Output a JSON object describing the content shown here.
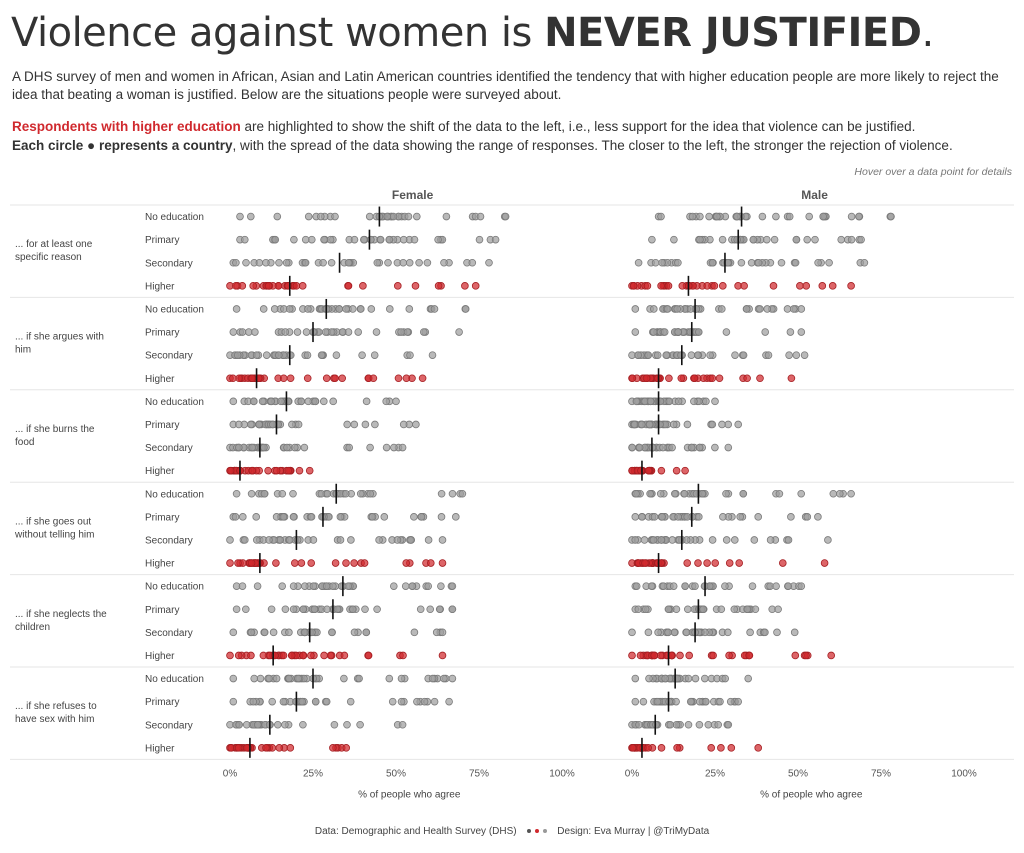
{
  "header": {
    "title_normal": "Violence against women is ",
    "title_bold": "NEVER JUSTIFIED",
    "title_end": ".",
    "intro": "A DHS survey of men and women in African, Asian and Latin American countries identified the tendency that with higher education people are more likely to reject the idea that beating a woman is justified. Below are the situations people were surveyed about.",
    "highlight_label": "Respondents with higher education",
    "highlight_text": " are highlighted to show the shift of the data to the left, i.e., less support for the idea that violence can be justified.",
    "circle_label": "Each circle ● represents a country",
    "circle_text": ", with the spread of the data showing the range of responses. The closer to the left, the stronger the rejection of violence.",
    "hover_note": "Hover over a data point for details"
  },
  "footer": {
    "source": "Data: Demographic and Health Survey (DHS)",
    "design": "Design: Eva Murray | @TriMyData"
  },
  "colors": {
    "grey_dot": "#9e9e9e",
    "grey_dot_stroke": "#7a7a7a",
    "red_dot": "#d0292e",
    "median_line": "#111111",
    "divider": "#e6e6e6"
  },
  "chart_data": {
    "type": "scatter",
    "subtype": "strip-plot",
    "panels": [
      "Female",
      "Male"
    ],
    "xlabel": "% of people who agree",
    "x_ticks": [
      "0%",
      "25%",
      "50%",
      "75%",
      "100%"
    ],
    "xlim": [
      0,
      100
    ],
    "education_levels": [
      "No education",
      "Primary",
      "Secondary",
      "Higher"
    ],
    "highlighted_level": "Higher",
    "groups": [
      {
        "label": "... for at least one specific reason",
        "female": [
          {
            "range": [
              3,
              83
            ],
            "median": 45
          },
          {
            "range": [
              3,
              80
            ],
            "median": 42
          },
          {
            "range": [
              1,
              78
            ],
            "median": 33
          },
          {
            "range": [
              0,
              74
            ],
            "median": 18
          }
        ],
        "male": [
          {
            "range": [
              8,
              78
            ],
            "median": 33
          },
          {
            "range": [
              6,
              69
            ],
            "median": 32
          },
          {
            "range": [
              2,
              70
            ],
            "median": 28
          },
          {
            "range": [
              0,
              66
            ],
            "median": 17
          }
        ]
      },
      {
        "label": "... if she argues with him",
        "female": [
          {
            "range": [
              2,
              71
            ],
            "median": 29
          },
          {
            "range": [
              1,
              69
            ],
            "median": 25
          },
          {
            "range": [
              0,
              61
            ],
            "median": 18
          },
          {
            "range": [
              0,
              58
            ],
            "median": 8
          }
        ],
        "male": [
          {
            "range": [
              1,
              51
            ],
            "median": 19
          },
          {
            "range": [
              1,
              51
            ],
            "median": 18
          },
          {
            "range": [
              0,
              52
            ],
            "median": 15
          },
          {
            "range": [
              0,
              48
            ],
            "median": 8
          }
        ]
      },
      {
        "label": "... if she burns the food",
        "female": [
          {
            "range": [
              1,
              50
            ],
            "median": 17
          },
          {
            "range": [
              1,
              56
            ],
            "median": 14
          },
          {
            "range": [
              0,
              52
            ],
            "median": 9
          },
          {
            "range": [
              0,
              24
            ],
            "median": 3
          }
        ],
        "male": [
          {
            "range": [
              0,
              25
            ],
            "median": 8
          },
          {
            "range": [
              0,
              32
            ],
            "median": 8
          },
          {
            "range": [
              0,
              29
            ],
            "median": 6
          },
          {
            "range": [
              0,
              16
            ],
            "median": 3
          }
        ]
      },
      {
        "label": "... if she goes out without telling him",
        "female": [
          {
            "range": [
              2,
              70
            ],
            "median": 32
          },
          {
            "range": [
              1,
              68
            ],
            "median": 28
          },
          {
            "range": [
              0,
              64
            ],
            "median": 20
          },
          {
            "range": [
              0,
              64
            ],
            "median": 9
          }
        ],
        "male": [
          {
            "range": [
              1,
              66
            ],
            "median": 20
          },
          {
            "range": [
              1,
              56
            ],
            "median": 18
          },
          {
            "range": [
              0,
              59
            ],
            "median": 15
          },
          {
            "range": [
              0,
              58
            ],
            "median": 8
          }
        ]
      },
      {
        "label": "... if she neglects the children",
        "female": [
          {
            "range": [
              2,
              67
            ],
            "median": 34
          },
          {
            "range": [
              2,
              67
            ],
            "median": 31
          },
          {
            "range": [
              1,
              64
            ],
            "median": 24
          },
          {
            "range": [
              0,
              64
            ],
            "median": 13
          }
        ],
        "male": [
          {
            "range": [
              1,
              51
            ],
            "median": 22
          },
          {
            "range": [
              1,
              44
            ],
            "median": 20
          },
          {
            "range": [
              0,
              49
            ],
            "median": 19
          },
          {
            "range": [
              0,
              60
            ],
            "median": 11
          }
        ]
      },
      {
        "label": "... if she refuses to have sex with him",
        "female": [
          {
            "range": [
              1,
              67
            ],
            "median": 25
          },
          {
            "range": [
              1,
              66
            ],
            "median": 20
          },
          {
            "range": [
              0,
              52
            ],
            "median": 12
          },
          {
            "range": [
              0,
              35
            ],
            "median": 6
          }
        ],
        "male": [
          {
            "range": [
              1,
              35
            ],
            "median": 13
          },
          {
            "range": [
              1,
              32
            ],
            "median": 11
          },
          {
            "range": [
              0,
              29
            ],
            "median": 7
          },
          {
            "range": [
              0,
              38
            ],
            "median": 3
          }
        ]
      }
    ]
  }
}
